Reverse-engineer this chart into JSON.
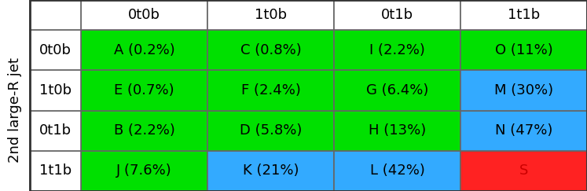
{
  "rows": [
    "1t1b",
    "0t1b",
    "1t0b",
    "0t0b"
  ],
  "cols": [
    "0t0b",
    "1t0b",
    "0t1b",
    "1t1b"
  ],
  "cells": [
    [
      "J (7.6%)",
      "K (21%)",
      "L (42%)",
      "S"
    ],
    [
      "B (2.2%)",
      "D (5.8%)",
      "H (13%)",
      "N (47%)"
    ],
    [
      "E (0.7%)",
      "F (2.4%)",
      "G (6.4%)",
      "M (30%)"
    ],
    [
      "A (0.2%)",
      "C (0.8%)",
      "I (2.2%)",
      "O (11%)"
    ]
  ],
  "cell_colors": [
    [
      "#00e000",
      "#33aaff",
      "#33aaff",
      "#ff2222"
    ],
    [
      "#00e000",
      "#00e000",
      "#00e000",
      "#33aaff"
    ],
    [
      "#00e000",
      "#00e000",
      "#00e000",
      "#33aaff"
    ],
    [
      "#00e000",
      "#00e000",
      "#00e000",
      "#00e000"
    ]
  ],
  "text_colors": [
    [
      "#000000",
      "#000000",
      "#000000",
      "#cc0000"
    ],
    [
      "#000000",
      "#000000",
      "#000000",
      "#000000"
    ],
    [
      "#000000",
      "#000000",
      "#000000",
      "#000000"
    ],
    [
      "#000000",
      "#000000",
      "#000000",
      "#000000"
    ]
  ],
  "ylabel": "2nd large-R jet",
  "border_color": "#666666",
  "cell_font_size": 13,
  "label_font_size": 13,
  "ylabel_font_size": 13
}
